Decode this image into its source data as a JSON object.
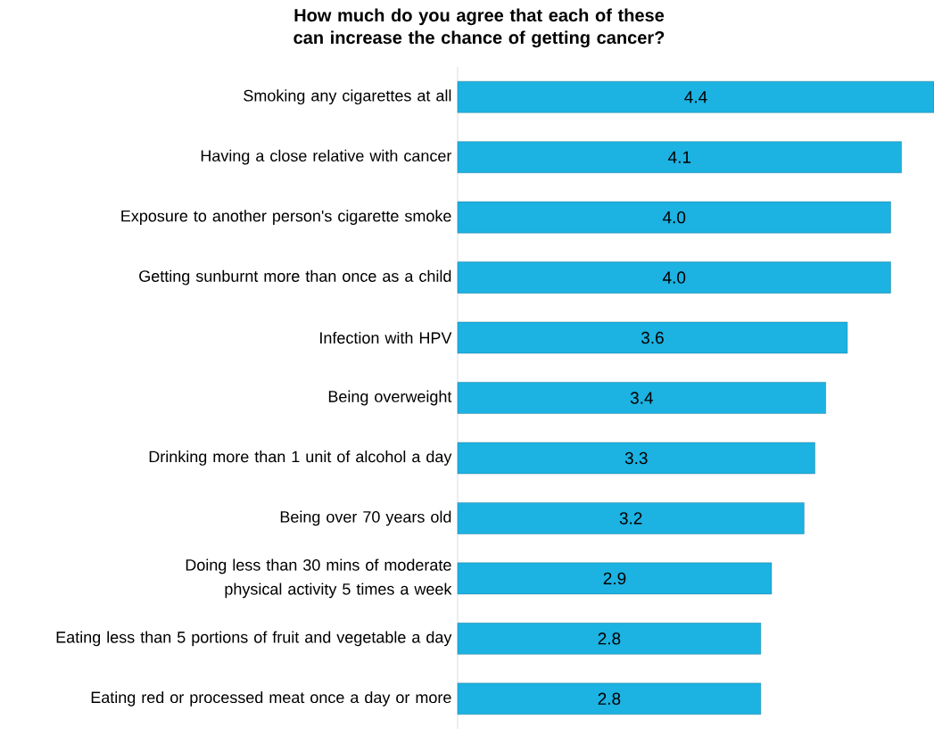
{
  "chart_data": {
    "type": "bar",
    "orientation": "horizontal",
    "title": "How much do you agree that each of these can increase the chance of getting cancer?",
    "categories": [
      "Smoking any cigarettes at all",
      "Having a close relative with cancer",
      "Exposure to another person's cigarette smoke",
      "Getting sunburnt more than once as a child",
      "Infection with HPV",
      "Being overweight",
      "Drinking more than 1 unit of alcohol a day",
      "Being over 70 years old",
      "Doing less than 30 mins of moderate physical activity 5 times a week",
      "Eating less than 5 portions of fruit and vegetable a day",
      "Eating red or processed meat once a day or more"
    ],
    "values": [
      4.4,
      4.1,
      4.0,
      4.0,
      3.6,
      3.4,
      3.3,
      3.2,
      2.9,
      2.8,
      2.8
    ],
    "color": "#1cb2e2",
    "value_labels": [
      "4.4",
      "4.1",
      "4.0",
      "4.0",
      "3.6",
      "3.4",
      "3.3",
      "3.2",
      "2.9",
      "2.8",
      "2.8"
    ]
  }
}
